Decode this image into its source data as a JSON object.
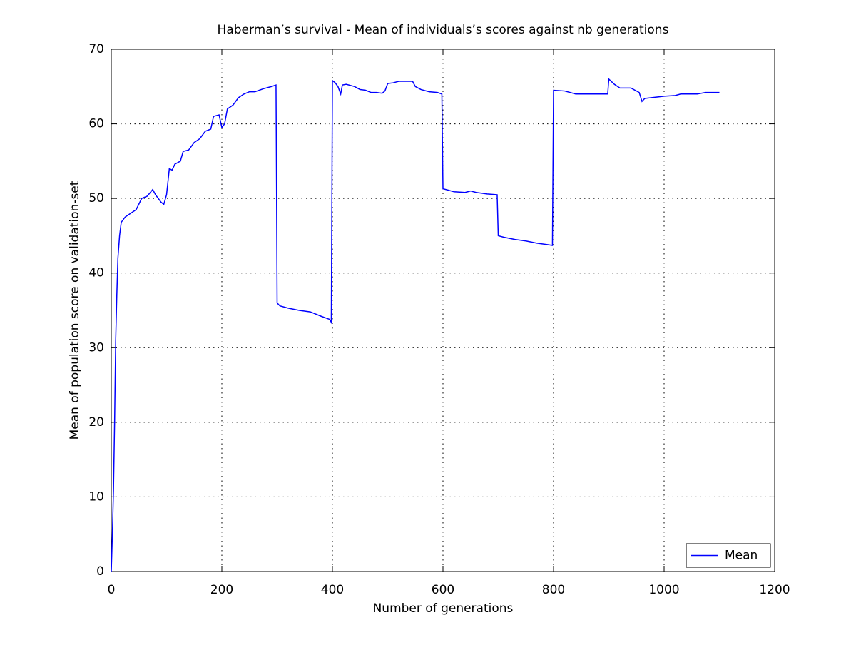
{
  "chart_data": {
    "type": "line",
    "title": "Haberman’s survival - Mean of individuals’s scores against nb generations",
    "xlabel": "Number of generations",
    "ylabel": "Mean of population score on validation-set",
    "x": [
      0,
      2,
      4,
      6,
      8,
      10,
      12,
      15,
      18,
      25,
      35,
      45,
      55,
      65,
      75,
      80,
      90,
      95,
      100,
      105,
      110,
      115,
      125,
      130,
      140,
      150,
      160,
      170,
      180,
      185,
      195,
      200,
      205,
      210,
      220,
      230,
      240,
      250,
      260,
      275,
      290,
      298,
      300,
      305,
      320,
      340,
      360,
      380,
      395,
      398,
      400,
      405,
      410,
      415,
      418,
      425,
      440,
      450,
      460,
      470,
      480,
      490,
      495,
      500,
      510,
      520,
      545,
      550,
      560,
      575,
      590,
      598,
      600,
      610,
      620,
      640,
      650,
      660,
      680,
      698,
      700,
      710,
      730,
      750,
      770,
      790,
      798,
      800,
      820,
      840,
      870,
      890,
      898,
      900,
      910,
      920,
      940,
      955,
      960,
      965,
      1000,
      1020,
      1030,
      1060,
      1075,
      1100
    ],
    "series": [
      {
        "name": "Mean",
        "color": "#0000ff",
        "values": [
          0,
          5,
          11,
          20,
          31,
          37,
          42,
          45,
          46.8,
          47.5,
          48,
          48.5,
          50,
          50.3,
          51.2,
          50.5,
          49.5,
          49.2,
          50.5,
          54,
          53.8,
          54.6,
          55,
          56.3,
          56.5,
          57.5,
          58,
          59,
          59.3,
          61,
          61.2,
          59.5,
          60,
          62,
          62.5,
          63.5,
          64,
          64.3,
          64.3,
          64.7,
          65,
          65.2,
          36,
          35.6,
          35.3,
          35,
          34.8,
          34.2,
          33.8,
          33.4,
          65.8,
          65.5,
          65,
          64,
          65.2,
          65.3,
          65,
          64.6,
          64.5,
          64.2,
          64.2,
          64.1,
          64.4,
          65.4,
          65.5,
          65.7,
          65.7,
          65,
          64.6,
          64.3,
          64.2,
          64,
          51.3,
          51.1,
          50.9,
          50.8,
          51,
          50.8,
          50.6,
          50.5,
          45,
          44.8,
          44.5,
          44.3,
          44,
          43.8,
          43.7,
          64.5,
          64.4,
          64,
          64,
          64,
          64,
          66,
          65.3,
          64.8,
          64.8,
          64.2,
          63,
          63.4,
          63.7,
          63.8,
          64,
          64,
          64.2,
          64.2
        ]
      }
    ],
    "xlim": [
      0,
      1200
    ],
    "xticks": [
      0,
      200,
      400,
      600,
      800,
      1000,
      1200
    ],
    "ylim": [
      0,
      70
    ],
    "yticks": [
      0,
      10,
      20,
      30,
      40,
      50,
      60,
      70
    ],
    "grid": true,
    "legend": "lower right"
  }
}
